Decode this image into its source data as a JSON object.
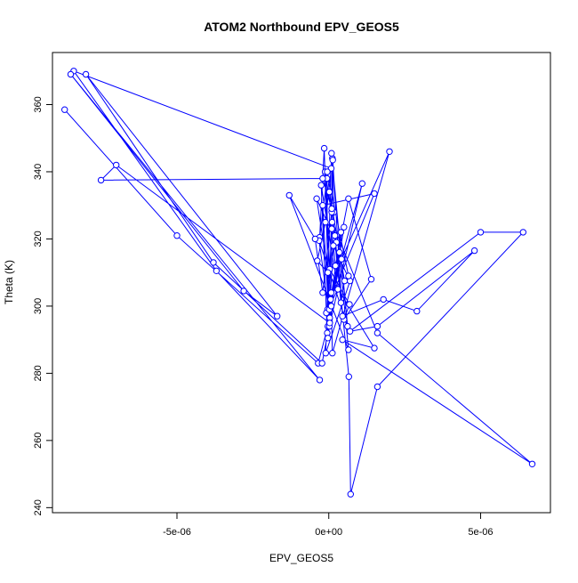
{
  "chart_data": {
    "type": "line",
    "title": "ATOM2 Northbound EPV_GEOS5",
    "xlabel": "EPV_GEOS5",
    "ylabel": "Theta (K)",
    "x_ticks": [
      -5e-06,
      0,
      5e-06
    ],
    "x_tick_labels": [
      "-5e-06",
      "0e+00",
      "5e-06"
    ],
    "y_ticks": [
      240,
      260,
      280,
      300,
      320,
      340,
      360
    ],
    "y_tick_labels": [
      "240",
      "260",
      "280",
      "300",
      "320",
      "340",
      "360"
    ],
    "xlim": [
      -9.1e-06,
      7.3e-06
    ],
    "ylim": [
      238.5,
      375.5
    ],
    "grid": false,
    "colors": {
      "series": "#0000ff",
      "axis": "#000000"
    },
    "marker": "open-circle",
    "series": [
      {
        "x": [
          -8.7e-06,
          -5e-06,
          -3.5e-07,
          -3e-08,
          -6e-08,
          -3e-07,
          -1.5e-07,
          2e-08,
          1.2e-07,
          1.7e-07,
          -5e-08,
          -2.5e-07,
          3e-07,
          -4e-08,
          1e-07,
          2.2e-07,
          6.5e-07,
          1.4e-06,
          5e-07,
          6.8e-07,
          3e-08,
          -1.2e-07,
          2.5e-07,
          -4e-07,
          8e-08,
          -8e-08,
          1.1e-06,
          2e-08,
          -2e-07,
          1.5e-06,
          6e-08,
          4e-07,
          -3e-08,
          1.5e-07,
          7e-07,
          -1e-07,
          9e-08,
          6.2e-07,
          -3.2e-07,
          3e-08,
          5e-07,
          2e-08,
          4.2e-07,
          2e-06,
          1.2e-07,
          8e-08,
          3.5e-07,
          6.5e-07,
          -1.3e-06,
          -4.5e-07,
          -2e-07,
          1e-07,
          1.3e-07,
          4.5e-07,
          1.8e-06,
          2.9e-06,
          4.8e-06,
          1.6e-06,
          7e-07,
          5e-06,
          6.4e-06,
          1.6e-06,
          7.2e-07,
          6.6e-07,
          2e-07,
          1.1e-07,
          1.6e-06,
          6.7e-06,
          4.5e-07,
          1.5e-06,
          -3e-08,
          -3.8e-07,
          -1.1e-07,
          8e-08,
          -8.4e-06,
          -3.7e-06,
          -3e-07,
          -8.5e-06,
          -2.8e-06,
          -1.7e-06,
          -8e-06,
          -3.8e-06,
          -2.2e-07,
          3e-08,
          -7e-06,
          -7.5e-06,
          -2e-07,
          1e-07,
          4e-07,
          5.2e-07,
          2e-08,
          -5e-08,
          6.5e-07
        ],
        "y": [
          358.5,
          321.0,
          283.0,
          294.0,
          338.0,
          320.5,
          347.0,
          296.0,
          344.0,
          328.0,
          292.0,
          336.0,
          305.0,
          299.0,
          323.0,
          312.0,
          332.0,
          308.0,
          296.0,
          300.5,
          311.0,
          340.0,
          319.0,
          332.0,
          304.0,
          298.0,
          336.5,
          294.0,
          330.0,
          333.5,
          302.0,
          322.0,
          290.5,
          318.0,
          307.5,
          286.0,
          345.5,
          294.0,
          319.5,
          296.5,
          323.5,
          299.0,
          314.0,
          346.0,
          286.0,
          300.0,
          316.0,
          287.0,
          333.0,
          320.0,
          304.0,
          328.0,
          343.5,
          297.0,
          302.0,
          298.5,
          316.5,
          294.0,
          292.5,
          322.0,
          322.0,
          276.0,
          244.0,
          279.0,
          321.0,
          325.0,
          292.0,
          253.0,
          290.0,
          287.5,
          310.0,
          313.5,
          325.0,
          341.0,
          370.0,
          310.5,
          278.0,
          369.0,
          304.5,
          297.0,
          369.0,
          313.0,
          283.0,
          295.0,
          342.0,
          337.5,
          338.0,
          329.0,
          301.0,
          307.5,
          334.0,
          340.0,
          309.0
        ]
      }
    ]
  }
}
